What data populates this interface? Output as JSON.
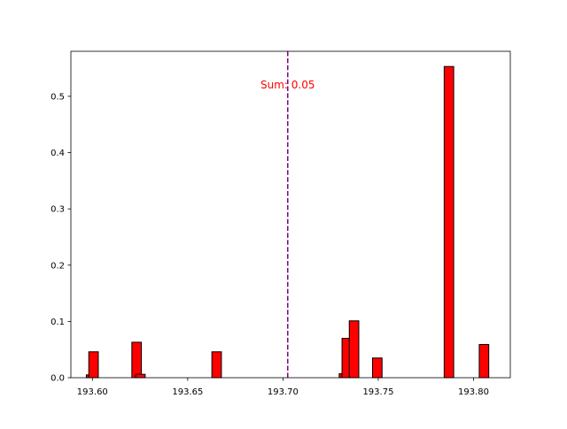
{
  "chart_data": {
    "type": "bar",
    "title": "",
    "xlabel": "",
    "ylabel": "",
    "xlim": [
      193.5887,
      193.8193
    ],
    "ylim": [
      0,
      0.58
    ],
    "x_ticks": [
      193.6,
      193.65,
      193.7,
      193.75,
      193.8
    ],
    "x_tick_labels": [
      "193.60",
      "193.65",
      "193.70",
      "193.75",
      "193.80"
    ],
    "y_ticks": [
      0.0,
      0.1,
      0.2,
      0.3,
      0.4,
      0.5
    ],
    "y_tick_labels": [
      "0.0",
      "0.1",
      "0.2",
      "0.3",
      "0.4",
      "0.5"
    ],
    "grid": false,
    "bar_color": "#ff0000",
    "bar_edge_color": "#000000",
    "bar_width": 0.005,
    "bars": [
      {
        "x": 193.5993,
        "value": 0.005
      },
      {
        "x": 193.6006,
        "value": 0.046
      },
      {
        "x": 193.6232,
        "value": 0.063
      },
      {
        "x": 193.6252,
        "value": 0.006
      },
      {
        "x": 193.6652,
        "value": 0.046
      },
      {
        "x": 193.732,
        "value": 0.007
      },
      {
        "x": 193.7335,
        "value": 0.07
      },
      {
        "x": 193.7373,
        "value": 0.101
      },
      {
        "x": 193.7495,
        "value": 0.035
      },
      {
        "x": 193.7871,
        "value": 0.553
      },
      {
        "x": 193.8055,
        "value": 0.059
      }
    ],
    "vline": {
      "x": 193.7025,
      "color": "#800080",
      "style": "dashed"
    },
    "annotation": {
      "text": "Sum: 0.05",
      "x": 193.7025,
      "y": 0.52,
      "color": "#ff0000"
    }
  }
}
